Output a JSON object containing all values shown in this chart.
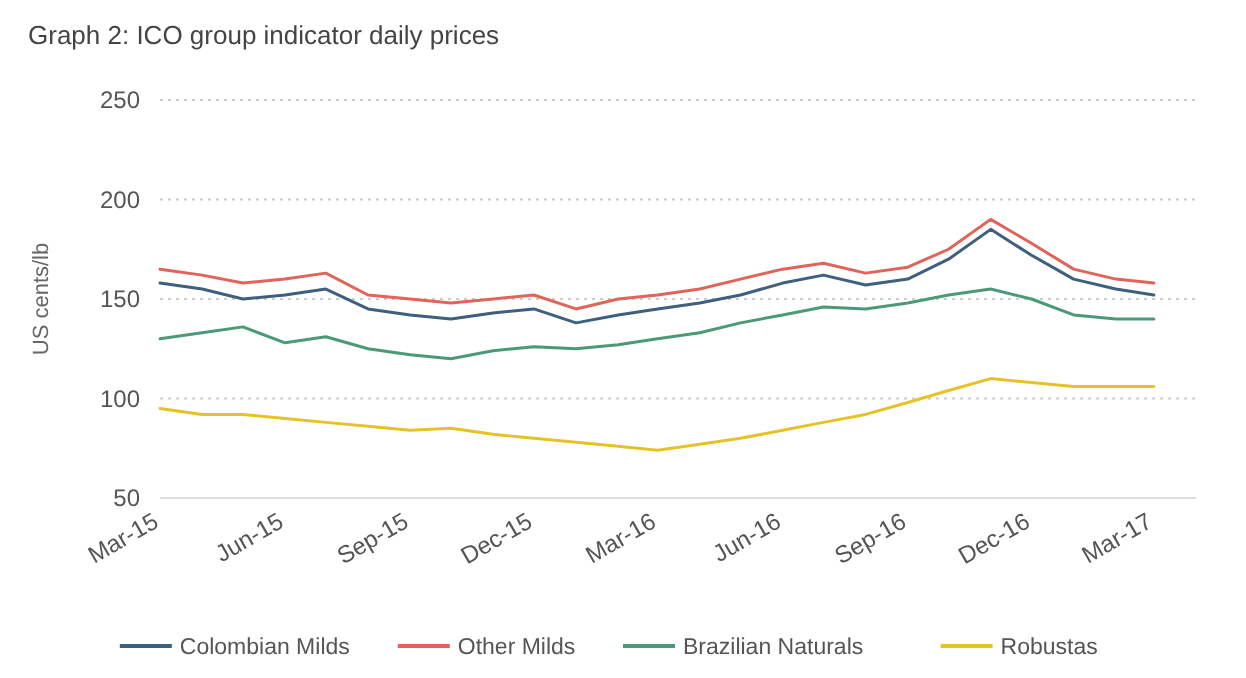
{
  "chart_data": {
    "type": "line",
    "title": "Graph 2: ICO group indicator daily prices",
    "ylabel": "US cents/lb",
    "x": [
      "2015-03",
      "2015-04",
      "2015-05",
      "2015-06",
      "2015-07",
      "2015-08",
      "2015-09",
      "2015-10",
      "2015-11",
      "2015-12",
      "2016-01",
      "2016-02",
      "2016-03",
      "2016-04",
      "2016-05",
      "2016-06",
      "2016-07",
      "2016-08",
      "2016-09",
      "2016-10",
      "2016-11",
      "2016-12",
      "2017-01",
      "2017-02",
      "2017-03"
    ],
    "series": [
      {
        "name": "Colombian Milds",
        "color": "#3f5f7f",
        "values": [
          158,
          155,
          150,
          152,
          155,
          145,
          142,
          140,
          143,
          145,
          138,
          142,
          145,
          148,
          152,
          158,
          162,
          157,
          160,
          170,
          185,
          172,
          160,
          155,
          152
        ]
      },
      {
        "name": "Other Milds",
        "color": "#e0645a",
        "values": [
          165,
          162,
          158,
          160,
          163,
          152,
          150,
          148,
          150,
          152,
          145,
          150,
          152,
          155,
          160,
          165,
          168,
          163,
          166,
          175,
          190,
          178,
          165,
          160,
          158
        ]
      },
      {
        "name": "Brazilian Naturals",
        "color": "#4a9a78",
        "values": [
          130,
          133,
          136,
          128,
          131,
          125,
          122,
          120,
          124,
          126,
          125,
          127,
          130,
          133,
          138,
          142,
          146,
          145,
          148,
          152,
          155,
          150,
          142,
          140,
          140
        ]
      },
      {
        "name": "Robustas",
        "color": "#e6c229",
        "values": [
          95,
          92,
          92,
          90,
          88,
          86,
          84,
          85,
          82,
          80,
          78,
          76,
          74,
          77,
          80,
          84,
          88,
          92,
          98,
          104,
          110,
          108,
          106,
          106,
          106
        ]
      }
    ],
    "xlim": [
      "2015-03",
      "2017-04"
    ],
    "xticks": [
      {
        "value": "2015-03",
        "label": "Mar-15"
      },
      {
        "value": "2015-06",
        "label": "Jun-15"
      },
      {
        "value": "2015-09",
        "label": "Sep-15"
      },
      {
        "value": "2015-12",
        "label": "Dec-15"
      },
      {
        "value": "2016-03",
        "label": "Mar-16"
      },
      {
        "value": "2016-06",
        "label": "Jun-16"
      },
      {
        "value": "2016-09",
        "label": "Sep-16"
      },
      {
        "value": "2016-12",
        "label": "Dec-16"
      },
      {
        "value": "2017-03",
        "label": "Mar-17"
      }
    ],
    "ylim": [
      50,
      250
    ],
    "yticks": [
      50,
      100,
      150,
      200,
      250
    ],
    "grid": "y",
    "legend": "bottom",
    "line_style": "solid",
    "marker": "none"
  }
}
